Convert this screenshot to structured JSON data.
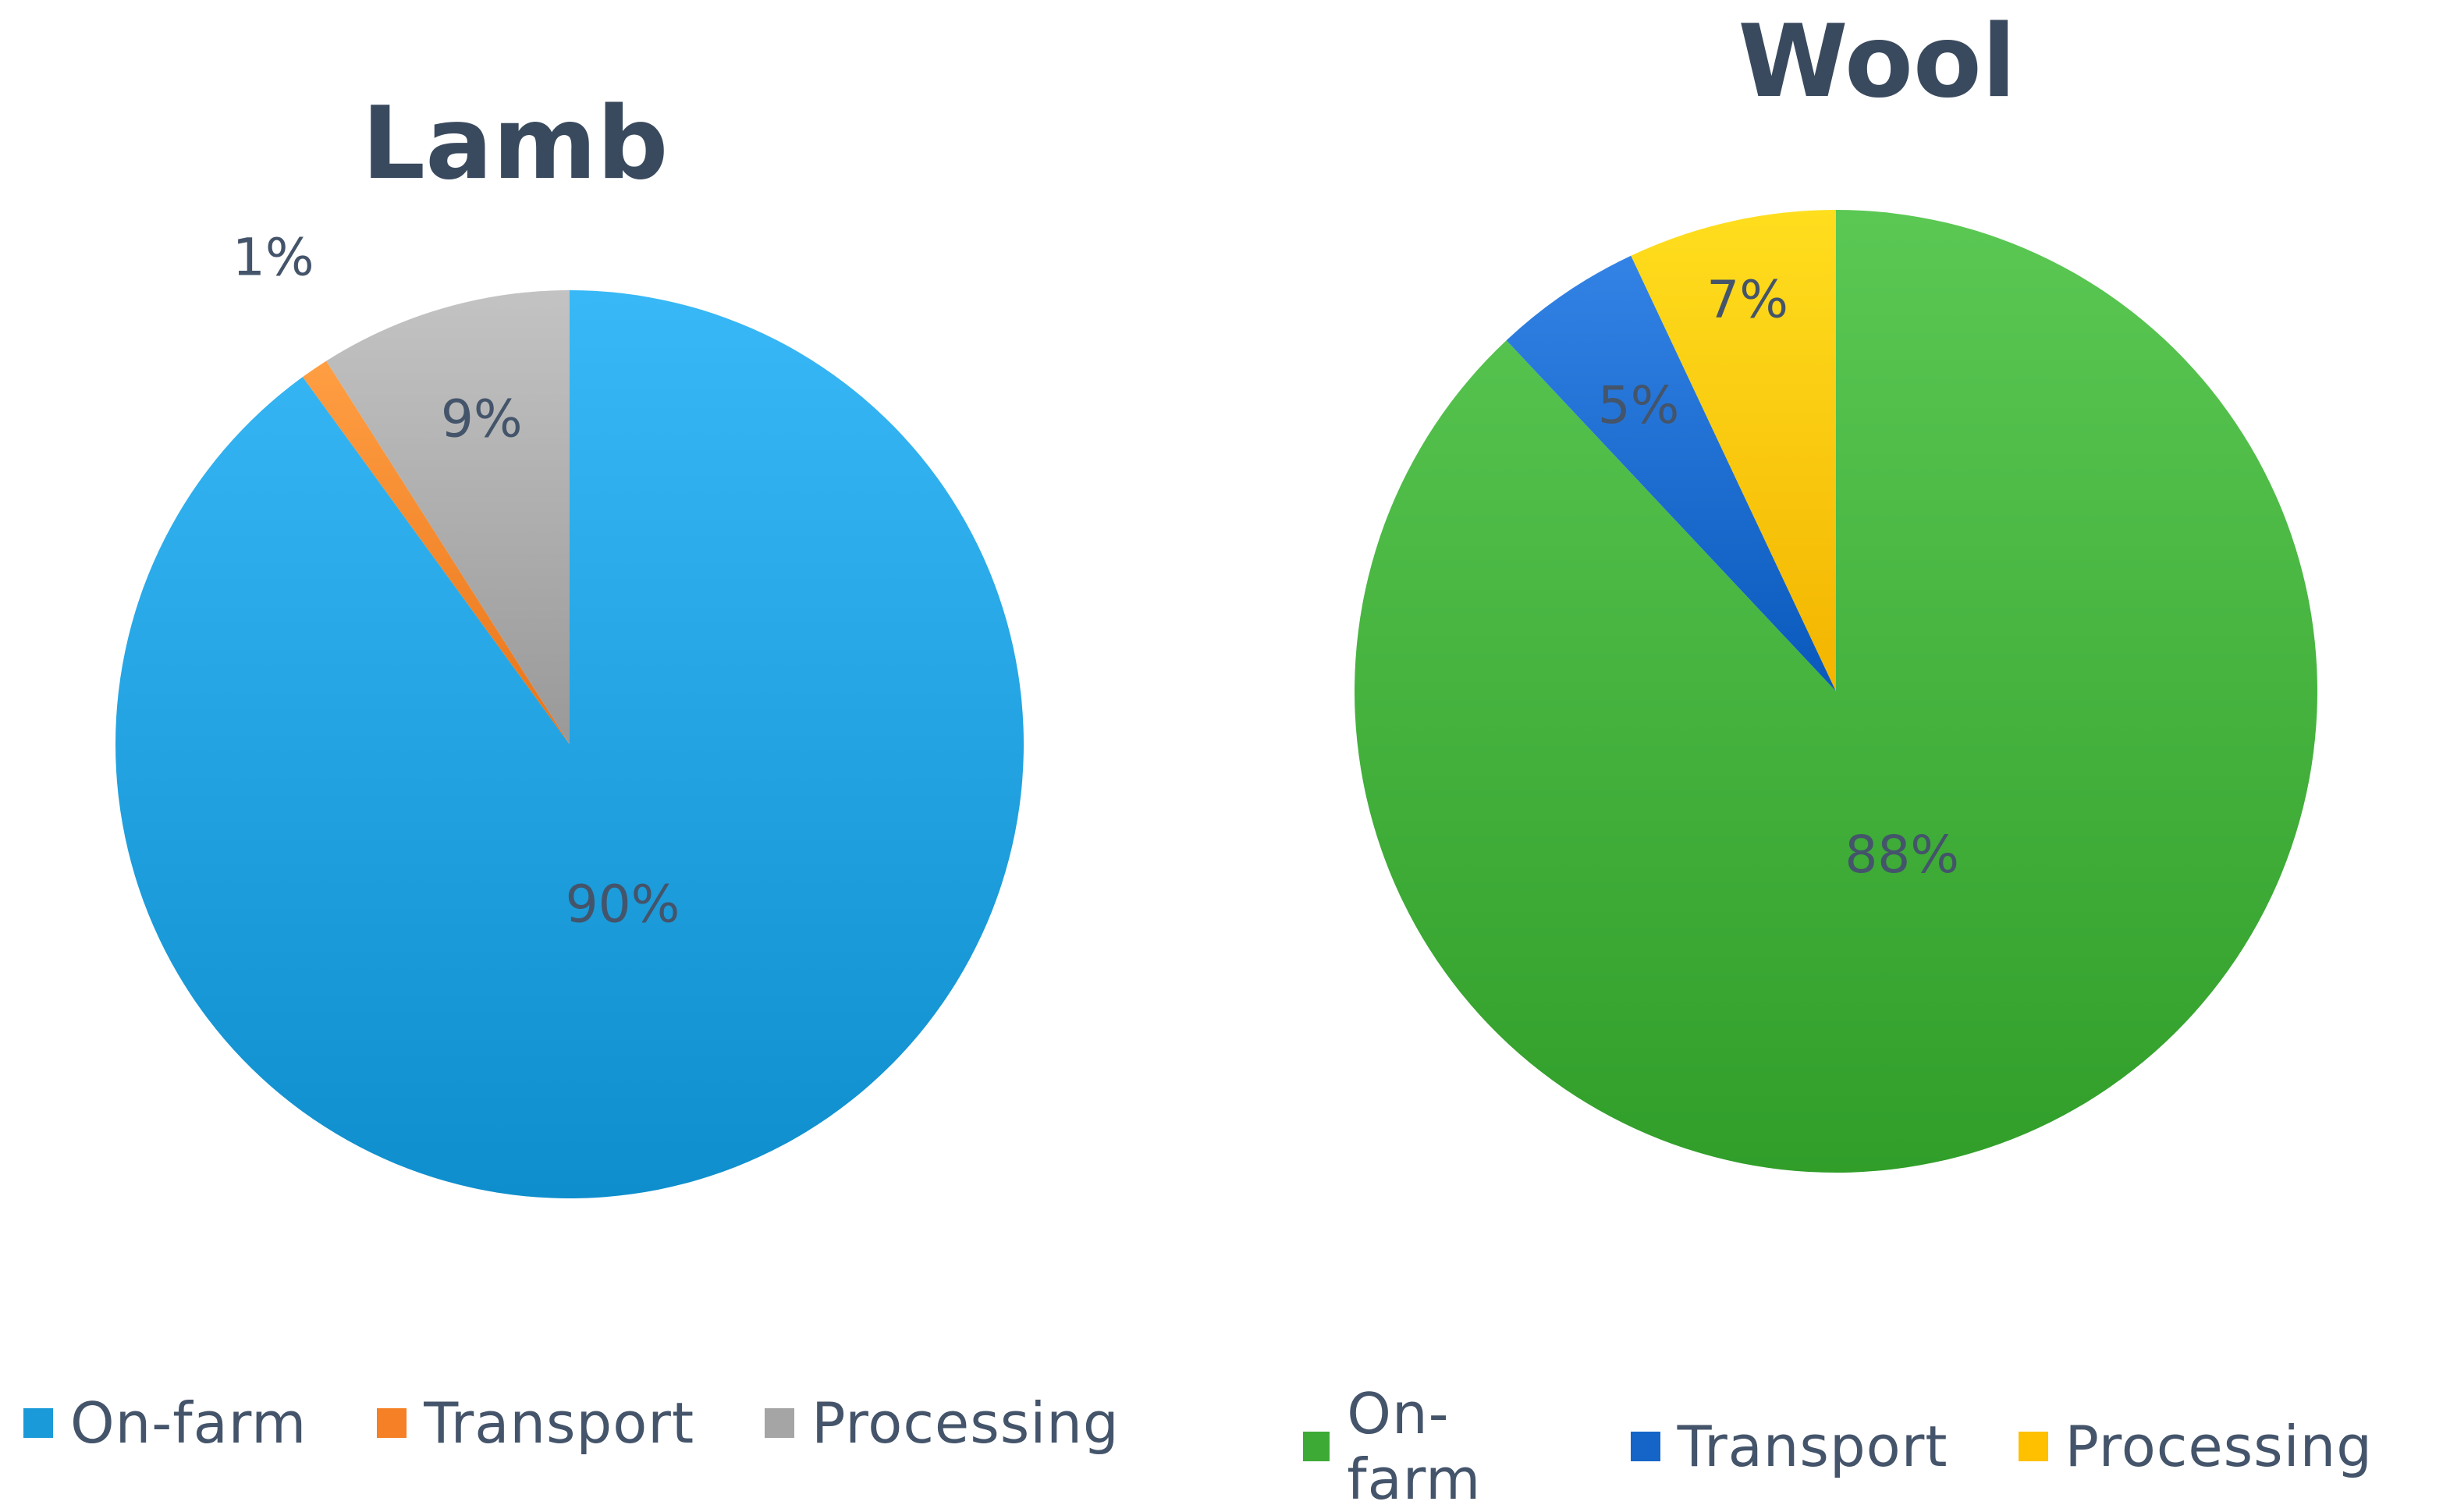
{
  "chart_data": [
    {
      "type": "pie",
      "title": "Lamb",
      "categories": [
        "On-farm",
        "Transport",
        "Processing"
      ],
      "values": [
        90,
        1,
        9
      ],
      "labels": [
        "90%",
        "1%",
        "9%"
      ],
      "colors": [
        "#1a9ad8",
        "#f58025",
        "#a5a5a5"
      ],
      "legend": "bottom"
    },
    {
      "type": "pie",
      "title": "Wool",
      "categories": [
        "On-farm",
        "Transport",
        "Processing"
      ],
      "values": [
        88,
        5,
        7
      ],
      "labels": [
        "88%",
        "5%",
        "7%"
      ],
      "colors": [
        "#3caa35",
        "#1565c8",
        "#ffc000"
      ],
      "legend": "bottom"
    }
  ]
}
